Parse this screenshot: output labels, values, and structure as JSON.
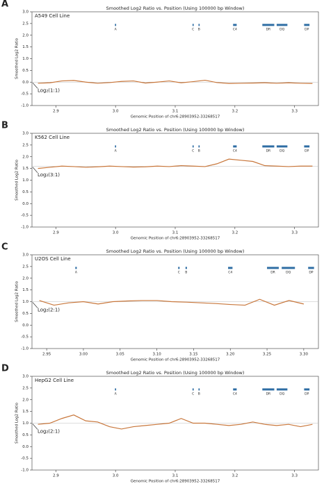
{
  "chart_data": [
    {
      "type": "line",
      "panel": "A",
      "subtitle": "A549 Cell Line",
      "title": "Smoothed Log2 Ratio vs. Position (Using 100000 bp Window)",
      "xlabel": "Genomic Position of chr6:28903952-33268517",
      "ylabel": "Smoothed Log2 Ratio",
      "x": [
        2.87,
        2.89,
        2.91,
        2.93,
        2.95,
        2.97,
        2.99,
        3.01,
        3.03,
        3.05,
        3.07,
        3.09,
        3.11,
        3.13,
        3.15,
        3.17,
        3.19,
        3.21,
        3.23,
        3.25,
        3.27,
        3.29,
        3.31,
        3.33
      ],
      "values": [
        -0.05,
        -0.03,
        0.05,
        0.07,
        0.0,
        -0.05,
        -0.02,
        0.03,
        0.05,
        -0.04,
        0.0,
        0.05,
        -0.03,
        0.02,
        0.08,
        -0.02,
        -0.06,
        -0.05,
        -0.04,
        -0.03,
        -0.05,
        -0.03,
        -0.05,
        -0.06
      ],
      "color": "#c8763a",
      "reference": {
        "value": 0,
        "label": "Log₂(1:1)"
      },
      "genes": [
        {
          "name": "A",
          "start": 2.999,
          "end": 3.001
        },
        {
          "name": "C",
          "start": 3.129,
          "end": 3.131
        },
        {
          "name": "B",
          "start": 3.139,
          "end": 3.141
        },
        {
          "name": "C4",
          "start": 3.197,
          "end": 3.203
        },
        {
          "name": "DR",
          "start": 3.246,
          "end": 3.266
        },
        {
          "name": "DQ",
          "start": 3.27,
          "end": 3.288
        },
        {
          "name": "DP",
          "start": 3.316,
          "end": 3.325
        }
      ],
      "xlim": [
        2.86,
        3.34
      ],
      "ylim": [
        -1,
        3
      ],
      "xticks": [
        2.9,
        {
          "value": 3,
          "label": "3.0"
        },
        3.1,
        3.2,
        3.3
      ],
      "yticks": [
        {
          "value": -1,
          "label": "-1.0"
        },
        -0.5,
        {
          "value": 0,
          "label": "0.0"
        },
        0.5,
        {
          "value": 1,
          "label": "1.0"
        },
        1.5,
        {
          "value": 2,
          "label": "2.0"
        },
        2.5,
        {
          "value": 3,
          "label": "3.0"
        }
      ]
    },
    {
      "type": "line",
      "panel": "B",
      "subtitle": "K562 Cell Line",
      "title": "Smoothed Log2 Ratio vs. Position (Using 100000 bp Window)",
      "xlabel": "Genomic Position of chr6:28903952-33268517",
      "ylabel": "Smoothed Log2 Ratio",
      "x": [
        2.87,
        2.89,
        2.91,
        2.93,
        2.95,
        2.97,
        2.99,
        3.01,
        3.03,
        3.05,
        3.07,
        3.09,
        3.11,
        3.13,
        3.15,
        3.17,
        3.19,
        3.21,
        3.23,
        3.25,
        3.27,
        3.29,
        3.31,
        3.33
      ],
      "values": [
        1.5,
        1.55,
        1.6,
        1.58,
        1.55,
        1.57,
        1.6,
        1.58,
        1.56,
        1.57,
        1.6,
        1.58,
        1.62,
        1.6,
        1.58,
        1.7,
        1.9,
        1.85,
        1.8,
        1.62,
        1.6,
        1.58,
        1.6,
        1.6
      ],
      "color": "#c8763a",
      "reference": {
        "value": 1.585,
        "label": "Log₂(3:1)"
      },
      "genes": [
        {
          "name": "A",
          "start": 2.999,
          "end": 3.001
        },
        {
          "name": "C",
          "start": 3.129,
          "end": 3.131
        },
        {
          "name": "B",
          "start": 3.139,
          "end": 3.141
        },
        {
          "name": "C4",
          "start": 3.197,
          "end": 3.203
        },
        {
          "name": "DR",
          "start": 3.246,
          "end": 3.266
        },
        {
          "name": "DQ",
          "start": 3.27,
          "end": 3.288
        },
        {
          "name": "DP",
          "start": 3.316,
          "end": 3.325
        }
      ],
      "xlim": [
        2.86,
        3.34
      ],
      "ylim": [
        -1,
        3
      ],
      "xticks": [
        2.9,
        {
          "value": 3,
          "label": "3.0"
        },
        3.1,
        3.2,
        3.3
      ],
      "yticks": [
        {
          "value": -1,
          "label": "-1.0"
        },
        -0.5,
        {
          "value": 0,
          "label": "0.0"
        },
        0.5,
        {
          "value": 1,
          "label": "1.0"
        },
        1.5,
        {
          "value": 2,
          "label": "2.0"
        },
        2.5,
        {
          "value": 3,
          "label": "3.0"
        }
      ]
    },
    {
      "type": "line",
      "panel": "C",
      "subtitle": "U2OS Cell Line",
      "title": "Smoothed Log2 Ratio vs. Position (Using 100000 bp Window)",
      "xlabel": "Genomic Position of chr6:28903952-33268517",
      "ylabel": "Smoothed Log2 Ratio",
      "x": [
        2.94,
        2.96,
        2.98,
        3.0,
        3.02,
        3.04,
        3.06,
        3.08,
        3.1,
        3.12,
        3.14,
        3.16,
        3.18,
        3.2,
        3.22,
        3.24,
        3.26,
        3.28,
        3.3
      ],
      "values": [
        1.05,
        0.85,
        0.95,
        1.0,
        0.9,
        1.0,
        1.03,
        1.05,
        1.05,
        1.0,
        0.98,
        0.95,
        0.92,
        0.88,
        0.85,
        1.1,
        0.85,
        1.05,
        0.9
      ],
      "color": "#c8763a",
      "reference": {
        "value": 1,
        "label": "Log₂(2:1)"
      },
      "genes": [
        {
          "name": "A",
          "start": 2.989,
          "end": 2.991
        },
        {
          "name": "C",
          "start": 3.129,
          "end": 3.131
        },
        {
          "name": "B",
          "start": 3.139,
          "end": 3.141
        },
        {
          "name": "C4",
          "start": 3.197,
          "end": 3.203
        },
        {
          "name": "DR",
          "start": 3.25,
          "end": 3.266
        },
        {
          "name": "DQ",
          "start": 3.27,
          "end": 3.288
        },
        {
          "name": "DP",
          "start": 3.306,
          "end": 3.314
        }
      ],
      "xlim": [
        2.93,
        3.32
      ],
      "ylim": [
        -1,
        3
      ],
      "xticks": [
        2.95,
        {
          "value": 3,
          "label": "3.00"
        },
        3.05,
        {
          "value": 3.1,
          "label": "3.10"
        },
        3.15,
        {
          "value": 3.2,
          "label": "3.20"
        },
        3.25,
        {
          "value": 3.3,
          "label": "3.30"
        }
      ],
      "yticks": [
        {
          "value": -1,
          "label": "-1.0"
        },
        -0.5,
        {
          "value": 0,
          "label": "0.0"
        },
        0.5,
        {
          "value": 1,
          "label": "1.0"
        },
        1.5,
        {
          "value": 2,
          "label": "2.0"
        },
        2.5,
        {
          "value": 3,
          "label": "3.0"
        }
      ]
    },
    {
      "type": "line",
      "panel": "D",
      "subtitle": "HepG2 Cell Line",
      "title": "Smoothed Log2 Ratio vs. Position (Using 100000 bp Window)",
      "xlabel": "Genomic Position of chr6:28903952-33268517",
      "ylabel": "Smoothed Log2 Ratio",
      "x": [
        2.87,
        2.89,
        2.91,
        2.93,
        2.95,
        2.97,
        2.99,
        3.01,
        3.03,
        3.05,
        3.07,
        3.09,
        3.11,
        3.13,
        3.15,
        3.17,
        3.19,
        3.21,
        3.23,
        3.25,
        3.27,
        3.29,
        3.31,
        3.33
      ],
      "values": [
        0.95,
        1.0,
        1.2,
        1.35,
        1.1,
        1.05,
        0.85,
        0.75,
        0.85,
        0.9,
        0.95,
        1.0,
        1.2,
        1.0,
        1.0,
        0.95,
        0.9,
        0.95,
        1.05,
        0.95,
        0.9,
        0.95,
        0.85,
        0.95
      ],
      "color": "#c8763a",
      "reference": {
        "value": 1,
        "label": "Log₂(2:1)"
      },
      "genes": [
        {
          "name": "A",
          "start": 2.999,
          "end": 3.001
        },
        {
          "name": "C",
          "start": 3.129,
          "end": 3.131
        },
        {
          "name": "B",
          "start": 3.139,
          "end": 3.141
        },
        {
          "name": "C4",
          "start": 3.197,
          "end": 3.203
        },
        {
          "name": "DR",
          "start": 3.246,
          "end": 3.266
        },
        {
          "name": "DQ",
          "start": 3.27,
          "end": 3.288
        },
        {
          "name": "DP",
          "start": 3.316,
          "end": 3.325
        }
      ],
      "xlim": [
        2.86,
        3.34
      ],
      "ylim": [
        -1,
        3
      ],
      "xticks": [
        2.9,
        {
          "value": 3,
          "label": "3.0"
        },
        3.1,
        3.2,
        3.3
      ],
      "yticks": [
        {
          "value": -1,
          "label": "-1.0"
        },
        -0.5,
        {
          "value": 0,
          "label": "0.0"
        },
        0.5,
        {
          "value": 1,
          "label": "1.0"
        },
        1.5,
        {
          "value": 2,
          "label": "2.0"
        },
        2.5,
        {
          "value": 3,
          "label": "3.0"
        }
      ]
    }
  ]
}
